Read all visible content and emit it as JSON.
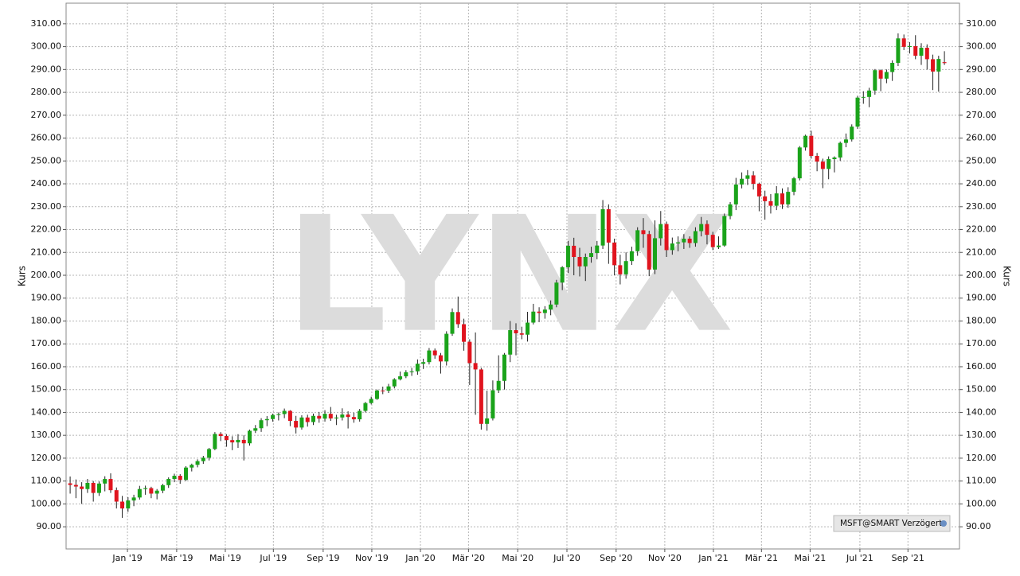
{
  "chart_data": {
    "type": "candlestick",
    "watermark": "LYNX",
    "y_label": "Kurs",
    "instrument": "MSFT@SMART Verzögert",
    "up_color": "#1aa31a",
    "down_color": "#e0141e",
    "grid": true,
    "ylim": [
      80.3,
      319
    ],
    "yticks": [
      {
        "value": 90,
        "label": "90.00"
      },
      {
        "value": 100,
        "label": "100.00"
      },
      {
        "value": 110,
        "label": "110.00"
      },
      {
        "value": 120,
        "label": "120.00"
      },
      {
        "value": 130,
        "label": "130.00"
      },
      {
        "value": 140,
        "label": "140.00"
      },
      {
        "value": 150,
        "label": "150.00"
      },
      {
        "value": 160,
        "label": "160.00"
      },
      {
        "value": 170,
        "label": "170.00"
      },
      {
        "value": 180,
        "label": "180.00"
      },
      {
        "value": 190,
        "label": "190.00"
      },
      {
        "value": 200,
        "label": "200.00"
      },
      {
        "value": 210,
        "label": "210.00"
      },
      {
        "value": 220,
        "label": "220.00"
      },
      {
        "value": 230,
        "label": "230.00"
      },
      {
        "value": 240,
        "label": "240.00"
      },
      {
        "value": 250,
        "label": "250.00"
      },
      {
        "value": 260,
        "label": "260.00"
      },
      {
        "value": 270,
        "label": "270.00"
      },
      {
        "value": 280,
        "label": "280.00"
      },
      {
        "value": 290,
        "label": "290.00"
      },
      {
        "value": 300,
        "label": "300.00"
      },
      {
        "value": 310,
        "label": "310.00"
      }
    ],
    "xlim": [
      -0.7,
      153.6
    ],
    "xticks": [
      {
        "value": 9.9,
        "label": "Jan '19"
      },
      {
        "value": 18.4,
        "label": "Mär '19"
      },
      {
        "value": 26.8,
        "label": "Mai '19"
      },
      {
        "value": 35.1,
        "label": "Jul '19"
      },
      {
        "value": 43.7,
        "label": "Sep '19"
      },
      {
        "value": 52.1,
        "label": "Nov '19"
      },
      {
        "value": 60.5,
        "label": "Jan '20"
      },
      {
        "value": 68.8,
        "label": "Mär '20"
      },
      {
        "value": 77.3,
        "label": "Mai '20"
      },
      {
        "value": 85.8,
        "label": "Jul '20"
      },
      {
        "value": 94.3,
        "label": "Sep '20"
      },
      {
        "value": 102.7,
        "label": "Nov '20"
      },
      {
        "value": 111.1,
        "label": "Jan '21"
      },
      {
        "value": 119.4,
        "label": "Mär '21"
      },
      {
        "value": 127.8,
        "label": "Mai '21"
      },
      {
        "value": 136.4,
        "label": "Jul '21"
      },
      {
        "value": 144.7,
        "label": "Sep '21"
      }
    ],
    "candles": [
      [
        109.0,
        112.0,
        104.5,
        108.3
      ],
      [
        108.3,
        110.7,
        102.5,
        107.6
      ],
      [
        107.6,
        109.5,
        100.0,
        106.5
      ],
      [
        106.5,
        110.9,
        104.8,
        109.2
      ],
      [
        109.2,
        110.0,
        101.0,
        104.8
      ],
      [
        104.8,
        109.8,
        103.5,
        108.9
      ],
      [
        108.9,
        112.1,
        105.5,
        110.9
      ],
      [
        110.9,
        113.4,
        104.8,
        106.0
      ],
      [
        106.0,
        107.2,
        98.0,
        101.0
      ],
      [
        101.0,
        103.5,
        93.9,
        98.0
      ],
      [
        98.0,
        102.9,
        96.5,
        101.5
      ],
      [
        101.5,
        104.0,
        99.0,
        102.8
      ],
      [
        102.8,
        107.9,
        101.9,
        106.5
      ],
      [
        106.5,
        108.0,
        104.0,
        106.9
      ],
      [
        106.9,
        107.5,
        102.5,
        104.5
      ],
      [
        104.5,
        106.5,
        102.0,
        105.8
      ],
      [
        105.8,
        108.8,
        104.7,
        108.2
      ],
      [
        108.2,
        111.6,
        107.0,
        110.9
      ],
      [
        110.9,
        113.2,
        109.5,
        112.3
      ],
      [
        112.3,
        113.0,
        108.8,
        110.5
      ],
      [
        110.5,
        116.5,
        110.0,
        115.9
      ],
      [
        115.9,
        117.6,
        114.2,
        117.1
      ],
      [
        117.1,
        119.5,
        116.0,
        118.7
      ],
      [
        118.7,
        121.0,
        117.5,
        120.2
      ],
      [
        120.2,
        124.5,
        119.0,
        124.0
      ],
      [
        124.0,
        131.4,
        123.5,
        130.6
      ],
      [
        130.6,
        131.4,
        127.5,
        129.7
      ],
      [
        129.7,
        130.5,
        125.0,
        127.9
      ],
      [
        127.9,
        129.6,
        123.5,
        126.9
      ],
      [
        126.9,
        130.5,
        124.5,
        128.0
      ],
      [
        128.0,
        130.0,
        119.0,
        126.5
      ],
      [
        126.5,
        132.5,
        125.5,
        132.0
      ],
      [
        132.0,
        134.5,
        131.0,
        133.1
      ],
      [
        133.1,
        137.5,
        131.5,
        136.6
      ],
      [
        136.6,
        138.4,
        134.0,
        137.1
      ],
      [
        137.1,
        139.5,
        136.0,
        138.9
      ],
      [
        138.9,
        140.0,
        136.5,
        139.3
      ],
      [
        139.3,
        141.7,
        137.5,
        140.7
      ],
      [
        140.7,
        141.0,
        134.0,
        136.3
      ],
      [
        136.3,
        138.5,
        130.8,
        133.4
      ],
      [
        133.4,
        138.8,
        132.5,
        137.8
      ],
      [
        137.8,
        139.0,
        133.8,
        135.8
      ],
      [
        135.8,
        139.5,
        134.5,
        138.5
      ],
      [
        138.5,
        140.2,
        135.5,
        137.3
      ],
      [
        137.3,
        141.0,
        136.0,
        139.4
      ],
      [
        139.4,
        142.4,
        136.3,
        137.4
      ],
      [
        137.4,
        139.0,
        134.5,
        137.8
      ],
      [
        137.8,
        141.8,
        136.5,
        139.1
      ],
      [
        139.1,
        140.5,
        133.0,
        138.0
      ],
      [
        138.0,
        139.9,
        135.5,
        137.0
      ],
      [
        137.0,
        141.5,
        136.0,
        140.7
      ],
      [
        140.7,
        144.6,
        140.0,
        144.1
      ],
      [
        144.1,
        146.9,
        143.5,
        145.9
      ],
      [
        145.9,
        150.0,
        145.5,
        149.6
      ],
      [
        149.6,
        151.3,
        148.0,
        149.5
      ],
      [
        149.5,
        152.5,
        148.5,
        151.4
      ],
      [
        151.4,
        155.0,
        150.5,
        154.5
      ],
      [
        154.5,
        157.9,
        154.0,
        155.8
      ],
      [
        155.8,
        158.5,
        155.0,
        157.6
      ],
      [
        157.6,
        159.5,
        156.0,
        158.0
      ],
      [
        158.0,
        163.2,
        156.5,
        161.3
      ],
      [
        161.3,
        163.5,
        159.0,
        162.0
      ],
      [
        162.0,
        168.2,
        161.0,
        167.1
      ],
      [
        167.1,
        168.0,
        163.5,
        165.0
      ],
      [
        165.0,
        166.0,
        157.0,
        162.3
      ],
      [
        162.3,
        175.5,
        160.5,
        174.4
      ],
      [
        174.4,
        185.5,
        173.5,
        183.9
      ],
      [
        183.9,
        190.7,
        177.0,
        178.6
      ],
      [
        178.6,
        181.0,
        167.0,
        170.9
      ],
      [
        170.9,
        172.0,
        152.0,
        161.6
      ],
      [
        161.6,
        175.0,
        139.0,
        158.8
      ],
      [
        158.8,
        159.5,
        132.5,
        135.0
      ],
      [
        135.0,
        149.5,
        132.0,
        137.4
      ],
      [
        137.4,
        154.0,
        136.5,
        149.7
      ],
      [
        149.7,
        165.0,
        148.5,
        153.8
      ],
      [
        153.8,
        166.0,
        150.0,
        165.3
      ],
      [
        165.3,
        180.0,
        162.0,
        176.0
      ],
      [
        176.0,
        179.0,
        165.0,
        174.6
      ],
      [
        174.6,
        177.5,
        172.0,
        174.0
      ],
      [
        174.0,
        184.0,
        171.0,
        179.3
      ],
      [
        179.3,
        187.5,
        178.5,
        184.1
      ],
      [
        184.1,
        186.0,
        179.5,
        183.5
      ],
      [
        183.5,
        186.5,
        181.0,
        185.0
      ],
      [
        185.0,
        189.0,
        182.5,
        187.2
      ],
      [
        187.2,
        198.0,
        186.0,
        196.8
      ],
      [
        196.8,
        204.0,
        193.5,
        203.5
      ],
      [
        203.5,
        215.0,
        201.0,
        212.9
      ],
      [
        212.9,
        216.4,
        200.0,
        208.0
      ],
      [
        208.0,
        212.0,
        199.5,
        203.9
      ],
      [
        203.9,
        209.5,
        197.5,
        208.0
      ],
      [
        208.0,
        212.5,
        205.5,
        209.7
      ],
      [
        209.7,
        215.0,
        207.0,
        213.0
      ],
      [
        213.0,
        232.9,
        211.5,
        228.9
      ],
      [
        228.9,
        231.0,
        205.0,
        214.3
      ],
      [
        214.3,
        216.0,
        200.0,
        204.4
      ],
      [
        204.4,
        209.0,
        196.0,
        200.4
      ],
      [
        200.4,
        210.0,
        198.5,
        206.2
      ],
      [
        206.2,
        212.5,
        204.5,
        210.5
      ],
      [
        210.5,
        221.0,
        208.5,
        219.7
      ],
      [
        219.7,
        225.0,
        212.0,
        218.0
      ],
      [
        218.0,
        219.5,
        199.6,
        202.5
      ],
      [
        202.5,
        224.0,
        200.5,
        216.2
      ],
      [
        216.2,
        228.1,
        213.0,
        222.4
      ],
      [
        222.4,
        223.5,
        208.0,
        211.0
      ],
      [
        211.0,
        216.5,
        209.0,
        213.9
      ],
      [
        213.9,
        217.0,
        210.5,
        214.4
      ],
      [
        214.4,
        218.0,
        211.5,
        216.0
      ],
      [
        216.0,
        217.0,
        212.0,
        214.1
      ],
      [
        214.1,
        221.0,
        212.5,
        219.3
      ],
      [
        219.3,
        225.5,
        217.0,
        222.4
      ],
      [
        222.4,
        224.0,
        213.5,
        217.7
      ],
      [
        217.7,
        219.0,
        211.0,
        212.3
      ],
      [
        212.3,
        217.0,
        211.5,
        213.0
      ],
      [
        213.0,
        227.0,
        212.5,
        225.9
      ],
      [
        225.9,
        232.0,
        224.5,
        231.0
      ],
      [
        231.0,
        242.6,
        228.5,
        239.7
      ],
      [
        239.7,
        245.0,
        238.0,
        242.2
      ],
      [
        242.2,
        246.0,
        239.5,
        243.7
      ],
      [
        243.7,
        245.5,
        237.5,
        240.0
      ],
      [
        240.0,
        240.5,
        228.0,
        234.5
      ],
      [
        234.5,
        237.0,
        224.3,
        232.4
      ],
      [
        232.4,
        235.5,
        227.0,
        230.4
      ],
      [
        230.4,
        239.0,
        228.5,
        235.8
      ],
      [
        235.8,
        238.0,
        229.0,
        231.0
      ],
      [
        231.0,
        238.5,
        229.5,
        236.5
      ],
      [
        236.5,
        243.0,
        235.0,
        242.4
      ],
      [
        242.4,
        256.5,
        241.5,
        255.9
      ],
      [
        255.9,
        261.5,
        254.5,
        261.0
      ],
      [
        261.0,
        263.2,
        251.0,
        252.2
      ],
      [
        252.2,
        253.5,
        245.5,
        249.7
      ],
      [
        249.7,
        251.0,
        238.1,
        246.5
      ],
      [
        246.5,
        252.0,
        242.0,
        250.8
      ],
      [
        250.8,
        252.0,
        245.0,
        251.5
      ],
      [
        251.5,
        258.5,
        250.0,
        257.9
      ],
      [
        257.9,
        262.0,
        256.0,
        259.4
      ],
      [
        259.4,
        266.0,
        258.5,
        265.0
      ],
      [
        265.0,
        278.5,
        264.0,
        277.7
      ],
      [
        277.7,
        280.5,
        275.0,
        278.0
      ],
      [
        278.0,
        282.0,
        273.5,
        280.8
      ],
      [
        280.8,
        290.2,
        279.0,
        289.7
      ],
      [
        289.7,
        290.0,
        280.5,
        286.0
      ],
      [
        286.0,
        290.0,
        284.0,
        288.9
      ],
      [
        288.9,
        294.0,
        285.0,
        292.9
      ],
      [
        292.9,
        305.8,
        291.5,
        303.6
      ],
      [
        303.6,
        305.3,
        298.5,
        299.9
      ],
      [
        299.9,
        302.0,
        297.0,
        300.2
      ],
      [
        300.2,
        305.0,
        294.5,
        296.0
      ],
      [
        296.0,
        301.5,
        292.0,
        299.5
      ],
      [
        299.5,
        301.0,
        290.0,
        294.5
      ],
      [
        294.5,
        296.5,
        281.0,
        289.1
      ],
      [
        289.1,
        296.0,
        280.3,
        294.6
      ],
      [
        293.2,
        298.0,
        292.0,
        292.8
      ]
    ]
  }
}
